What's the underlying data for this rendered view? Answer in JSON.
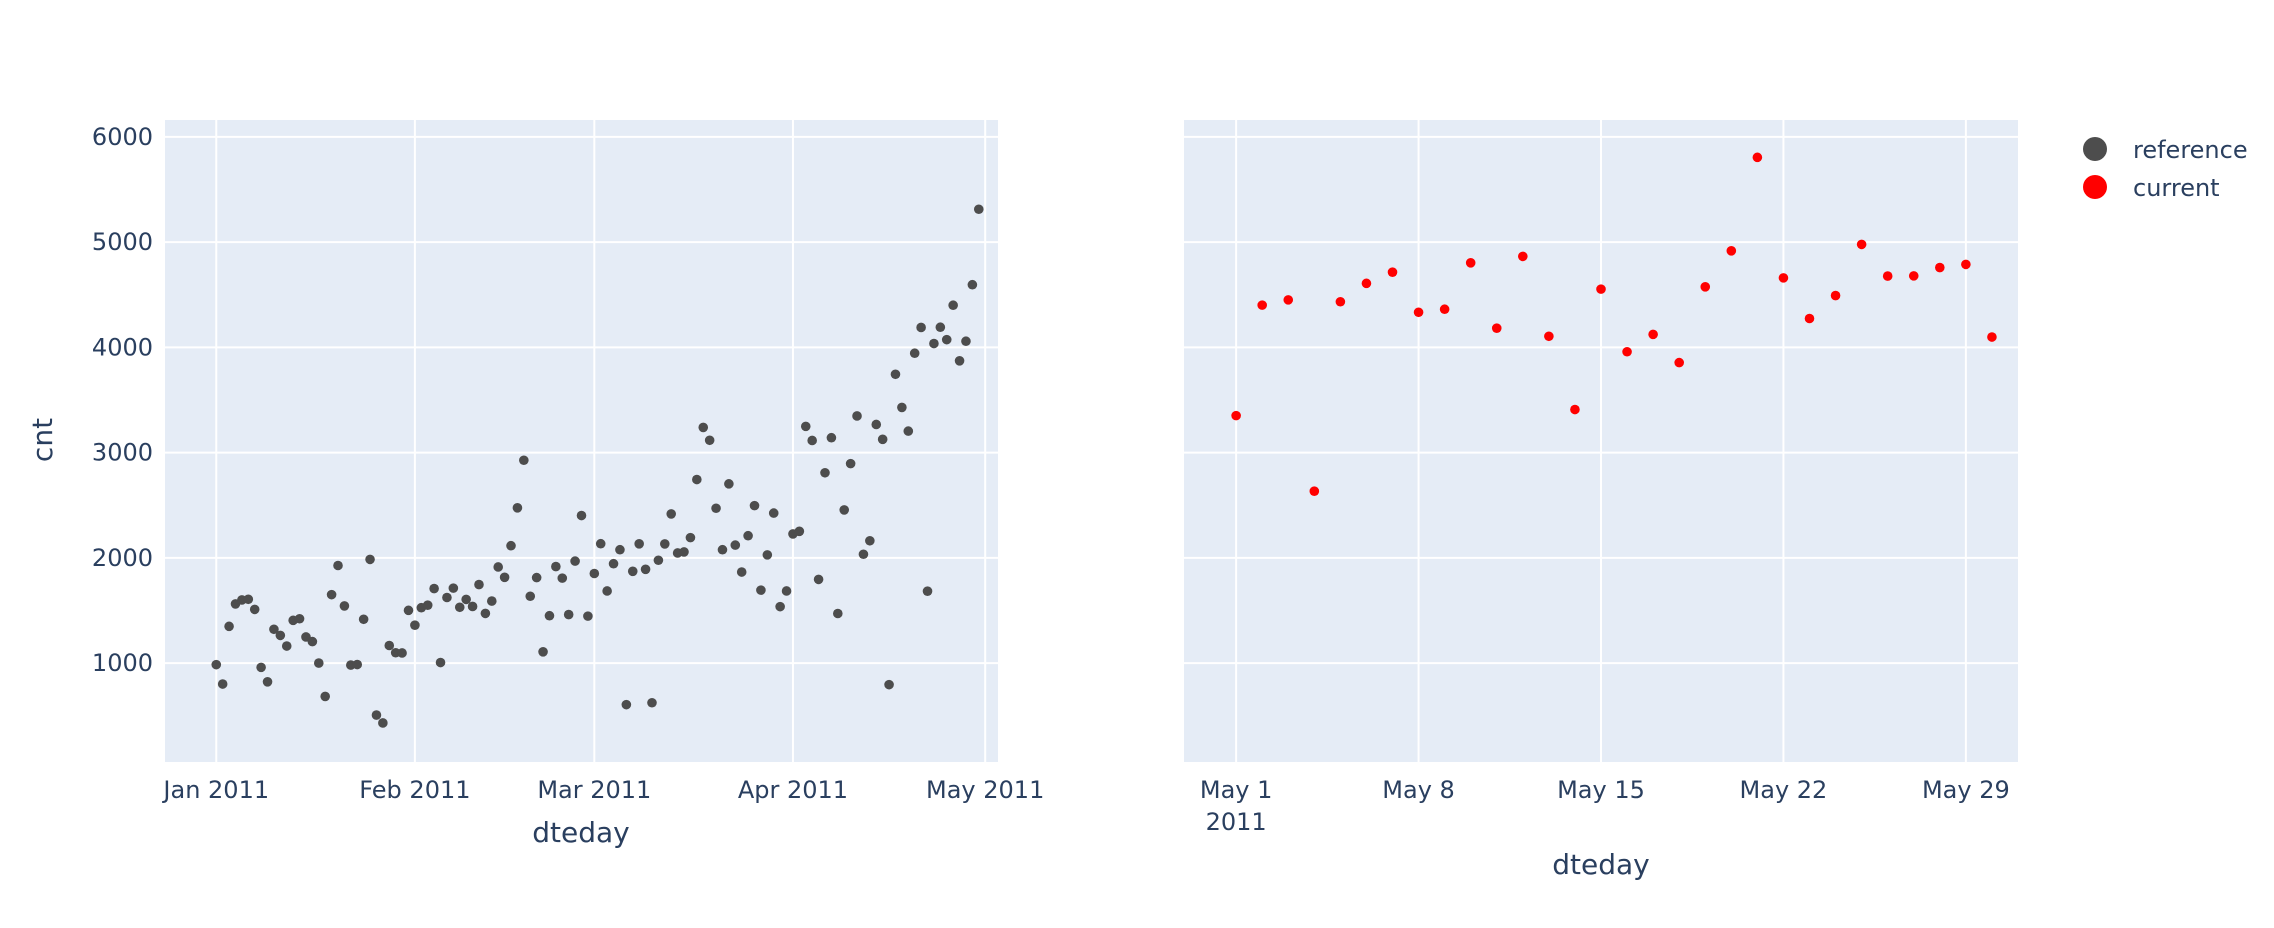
{
  "chart_data": [
    {
      "type": "scatter",
      "series_name": "reference",
      "color": "#4d4d4d",
      "xlabel": "dteday",
      "ylabel": "cnt",
      "xlim": [
        "2010-12-24",
        "2011-05-03"
      ],
      "ylim": [
        60,
        6160
      ],
      "x_ticks": [
        {
          "value": "2011-01-01",
          "label": "Jan 2011"
        },
        {
          "value": "2011-02-01",
          "label": "Feb 2011"
        },
        {
          "value": "2011-03-01",
          "label": "Mar 2011"
        },
        {
          "value": "2011-04-01",
          "label": "Apr 2011"
        },
        {
          "value": "2011-05-01",
          "label": "May 2011"
        }
      ],
      "y_ticks": [
        1000,
        2000,
        3000,
        4000,
        5000,
        6000
      ],
      "x_start": "2011-01-01",
      "values": [
        985,
        801,
        1349,
        1562,
        1600,
        1606,
        1510,
        959,
        822,
        1321,
        1263,
        1162,
        1406,
        1421,
        1248,
        1204,
        1000,
        683,
        1650,
        1927,
        1543,
        981,
        986,
        1416,
        1985,
        506,
        431,
        1167,
        1098,
        1096,
        1501,
        1360,
        1526,
        1550,
        1708,
        1005,
        1623,
        1712,
        1530,
        1605,
        1538,
        1746,
        1472,
        1589,
        1913,
        1815,
        2115,
        2475,
        2927,
        1635,
        1812,
        1107,
        1450,
        1917,
        1807,
        1461,
        1969,
        2402,
        1446,
        1851,
        2134,
        1685,
        1944,
        2077,
        605,
        1872,
        2133,
        1891,
        623,
        1977,
        2132,
        2417,
        2046,
        2056,
        2192,
        2744,
        3239,
        3117,
        2471,
        2077,
        2703,
        2121,
        1865,
        2210,
        2496,
        1693,
        2028,
        2425,
        1536,
        1685,
        2227,
        2252,
        3249,
        3115,
        1795,
        2808,
        3141,
        1471,
        2455,
        2895,
        3348,
        2034,
        2162,
        3267,
        3126,
        795,
        3744,
        3429,
        3204,
        3944,
        4189,
        1683,
        4036,
        4191,
        4073,
        4400,
        3872,
        4058,
        4595,
        5312
      ]
    },
    {
      "type": "scatter",
      "series_name": "current",
      "color": "#ff0000",
      "xlabel": "dteday",
      "xlim": [
        "2011-04-29",
        "2011-05-31"
      ],
      "ylim": [
        60,
        6160
      ],
      "x_ticks": [
        {
          "value": "2011-05-01",
          "label": "May 1",
          "sublabel": "2011"
        },
        {
          "value": "2011-05-08",
          "label": "May 8"
        },
        {
          "value": "2011-05-15",
          "label": "May 15"
        },
        {
          "value": "2011-05-22",
          "label": "May 22"
        },
        {
          "value": "2011-05-29",
          "label": "May 29"
        }
      ],
      "x_start": "2011-05-01",
      "values": [
        3351,
        4401,
        4451,
        2633,
        4433,
        4608,
        4714,
        4333,
        4362,
        4803,
        4182,
        4864,
        4105,
        3409,
        4553,
        3958,
        4123,
        3855,
        4575,
        4917,
        5805,
        4660,
        4274,
        4492,
        4978,
        4677,
        4679,
        4758,
        4788,
        4098
      ]
    }
  ],
  "legend": [
    {
      "label": "reference",
      "color": "#4d4d4d"
    },
    {
      "label": "current",
      "color": "#ff0000"
    }
  ],
  "colors": {
    "plot_background": "#e5ecf6",
    "grid": "#ffffff",
    "text": "#2a3f5f"
  }
}
